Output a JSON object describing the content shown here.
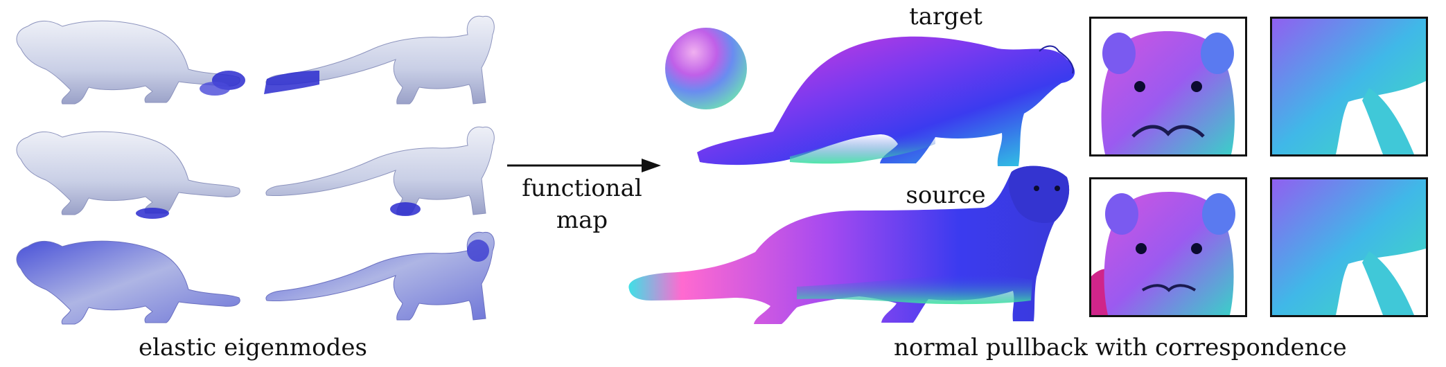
{
  "figure": {
    "left_caption": "elastic eigenmodes",
    "arrow_label_line1": "functional",
    "arrow_label_line2": "map",
    "target_label": "target",
    "source_label": "source",
    "right_caption": "normal pullback with correspondence"
  },
  "colors": {
    "mesh_base": "#c9cfe6",
    "mesh_highlight": "#2c2ccf",
    "normal_magenta": "#e03ad8",
    "normal_blue": "#3b3bef",
    "normal_cyan": "#2fe0e0",
    "normal_green": "#5ce08a"
  }
}
